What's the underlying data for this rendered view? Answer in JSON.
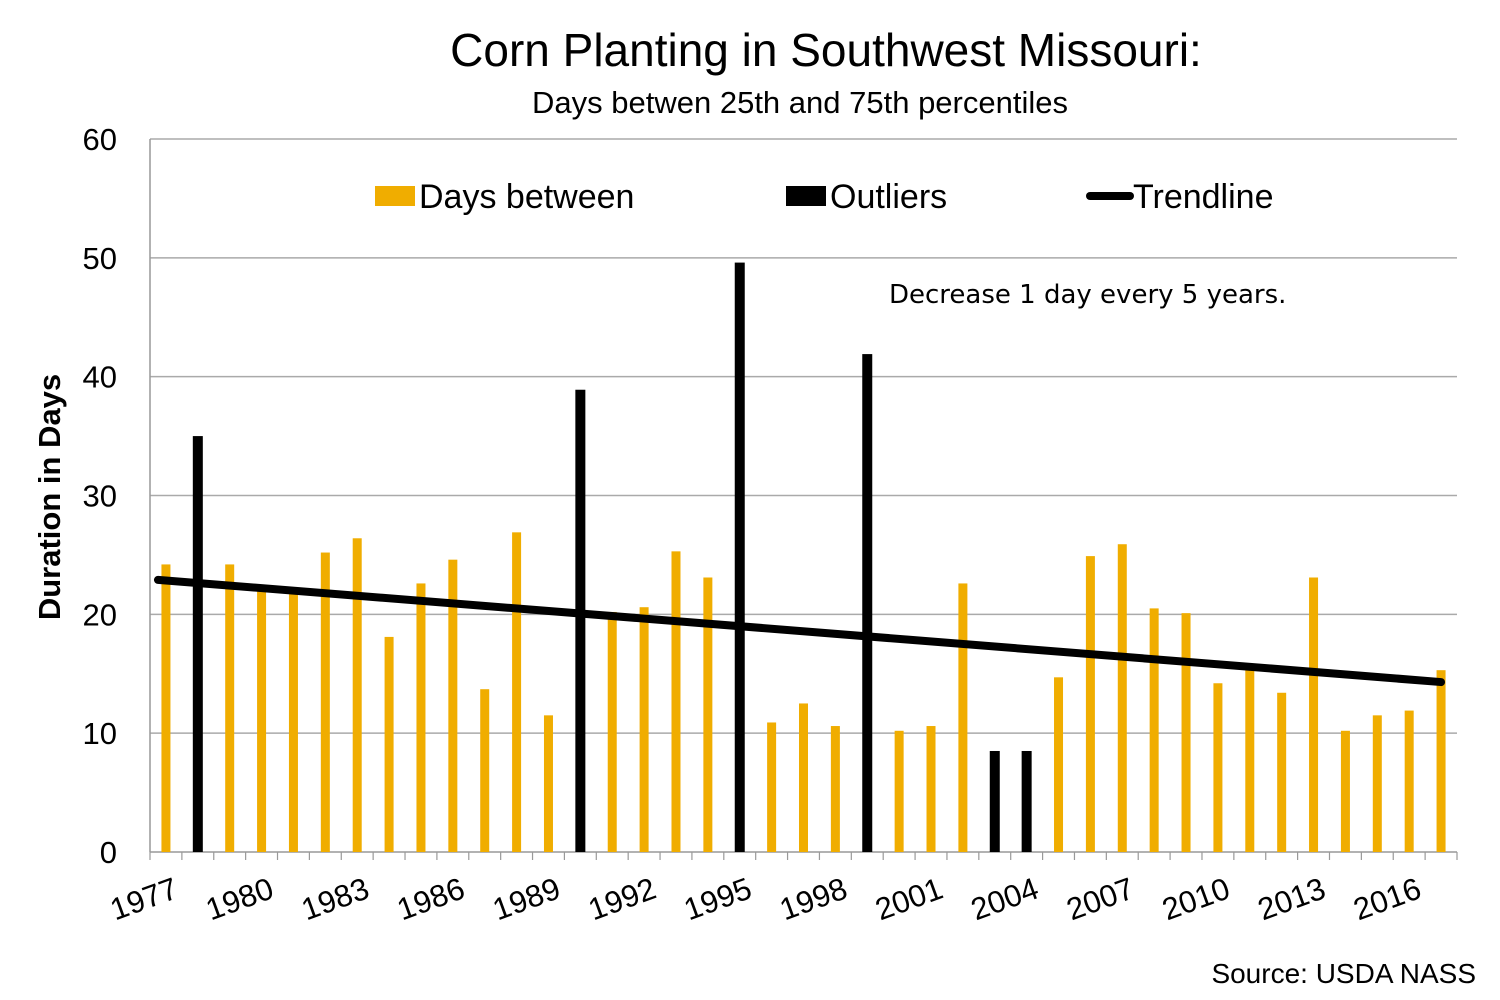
{
  "chart_data": {
    "type": "bar",
    "title": "Corn Planting in Southwest Missouri:",
    "subtitle": "Days betwen 25th and 75th percentiles",
    "xlabel": "",
    "ylabel": "Duration in Days",
    "ylim": [
      0,
      60
    ],
    "yticks": [
      0,
      10,
      20,
      30,
      40,
      50,
      60
    ],
    "grid": true,
    "legend_position": "top",
    "x": [
      1977,
      1978,
      1979,
      1980,
      1981,
      1982,
      1983,
      1984,
      1985,
      1986,
      1987,
      1988,
      1989,
      1990,
      1991,
      1992,
      1993,
      1994,
      1995,
      1996,
      1997,
      1998,
      1999,
      2000,
      2001,
      2002,
      2003,
      2004,
      2005,
      2006,
      2007,
      2008,
      2009,
      2010,
      2011,
      2012,
      2013,
      2014,
      2015,
      2016,
      2017
    ],
    "xtick_labels": [
      "1977",
      "1980",
      "1983",
      "1986",
      "1989",
      "1992",
      "1995",
      "1998",
      "2001",
      "2004",
      "2007",
      "2010",
      "2013",
      "2016"
    ],
    "series": [
      {
        "name": "Days between",
        "color": "#f0ad00",
        "values": [
          24.2,
          null,
          24.2,
          22.0,
          21.7,
          25.2,
          26.4,
          18.1,
          22.6,
          24.6,
          13.7,
          26.9,
          11.5,
          null,
          20.2,
          20.6,
          25.3,
          23.1,
          null,
          10.9,
          12.5,
          10.6,
          null,
          10.2,
          10.6,
          22.6,
          null,
          null,
          14.7,
          24.9,
          25.9,
          20.5,
          20.1,
          14.2,
          15.3,
          13.4,
          23.1,
          10.2,
          11.5,
          11.9,
          15.3
        ]
      },
      {
        "name": "Outliers",
        "color": "#000000",
        "values": [
          null,
          35.0,
          null,
          null,
          null,
          null,
          null,
          null,
          null,
          null,
          null,
          null,
          null,
          38.9,
          null,
          null,
          null,
          null,
          49.6,
          null,
          null,
          null,
          41.9,
          null,
          null,
          null,
          8.5,
          8.5,
          null,
          null,
          null,
          null,
          null,
          null,
          null,
          null,
          null,
          null,
          null,
          null,
          null
        ]
      },
      {
        "name": "Trendline",
        "type": "line",
        "color": "#000000",
        "start": {
          "x": 1977,
          "y": 22.9
        },
        "end": {
          "x": 2017,
          "y": 14.3
        }
      }
    ],
    "annotations": [
      "Decrease 1 day every 5 years."
    ],
    "source": "Source: USDA NASS"
  }
}
